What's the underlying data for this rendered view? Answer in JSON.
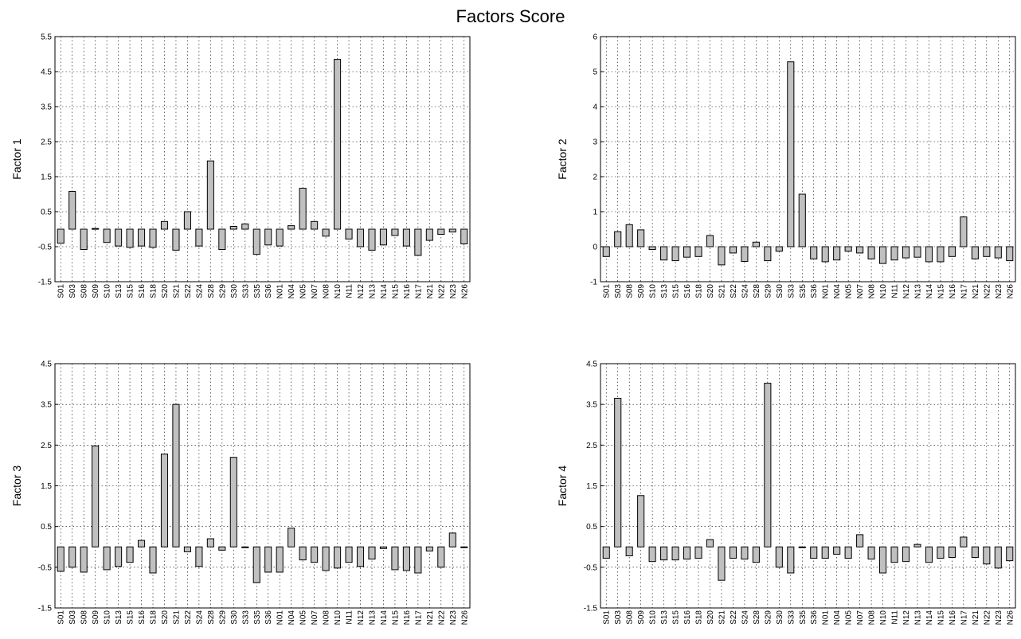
{
  "figure_title": "Factors Score",
  "bar_color": "#c0c0c0",
  "chart_data": [
    {
      "type": "bar",
      "title": "",
      "ylabel": "Factor 1",
      "xlabel": "",
      "ylim": [
        -1.5,
        5.5
      ],
      "yticks": [
        -1.5,
        -0.5,
        0.5,
        1.5,
        2.5,
        3.5,
        4.5,
        5.5
      ],
      "ytick_labels": [
        "-1.5",
        "-0.5",
        "0.5",
        "1.5",
        "2.5",
        "3.5",
        "4.5",
        "5.5"
      ],
      "grid": true,
      "categories": [
        "S01",
        "S03",
        "S08",
        "S09",
        "S10",
        "S13",
        "S15",
        "S16",
        "S18",
        "S20",
        "S21",
        "S22",
        "S24",
        "S28",
        "S29",
        "S30",
        "S33",
        "S35",
        "S36",
        "N01",
        "N04",
        "N05",
        "N07",
        "N08",
        "N10",
        "N11",
        "N12",
        "N13",
        "N14",
        "N15",
        "N16",
        "N17",
        "N21",
        "N22",
        "N23",
        "N26"
      ],
      "values": [
        -0.4,
        1.08,
        -0.58,
        0.02,
        -0.38,
        -0.48,
        -0.52,
        -0.48,
        -0.52,
        0.22,
        -0.6,
        0.5,
        -0.48,
        1.95,
        -0.58,
        0.08,
        0.15,
        -0.72,
        -0.45,
        -0.48,
        0.1,
        1.17,
        0.22,
        -0.2,
        4.85,
        -0.28,
        -0.5,
        -0.6,
        -0.45,
        -0.18,
        -0.48,
        -0.75,
        -0.32,
        -0.15,
        -0.08,
        -0.42
      ]
    },
    {
      "type": "bar",
      "title": "",
      "ylabel": "Factor 2",
      "xlabel": "",
      "ylim": [
        -1,
        6
      ],
      "yticks": [
        -1,
        0,
        1,
        2,
        3,
        4,
        5,
        6
      ],
      "ytick_labels": [
        "-1",
        "0",
        "1",
        "2",
        "3",
        "4",
        "5",
        "6"
      ],
      "grid": true,
      "categories": [
        "S01",
        "S03",
        "S08",
        "S09",
        "S10",
        "S13",
        "S15",
        "S16",
        "S18",
        "S20",
        "S21",
        "S22",
        "S24",
        "S28",
        "S29",
        "S30",
        "S33",
        "S35",
        "S36",
        "N01",
        "N04",
        "N05",
        "N07",
        "N08",
        "N10",
        "N11",
        "N12",
        "N13",
        "N14",
        "N15",
        "N16",
        "N17",
        "N21",
        "N22",
        "N23",
        "N26"
      ],
      "values": [
        -0.28,
        0.43,
        0.63,
        0.48,
        -0.08,
        -0.38,
        -0.4,
        -0.3,
        -0.28,
        0.32,
        -0.52,
        -0.18,
        -0.42,
        0.13,
        -0.4,
        -0.13,
        5.28,
        1.5,
        -0.35,
        -0.43,
        -0.38,
        -0.13,
        -0.18,
        -0.35,
        -0.48,
        -0.38,
        -0.32,
        -0.3,
        -0.43,
        -0.43,
        -0.28,
        0.85,
        -0.35,
        -0.28,
        -0.32,
        -0.4
      ]
    },
    {
      "type": "bar",
      "title": "",
      "ylabel": "Factor 3",
      "xlabel": "",
      "ylim": [
        -1.5,
        4.5
      ],
      "yticks": [
        -1.5,
        -0.5,
        0.5,
        1.5,
        2.5,
        3.5,
        4.5
      ],
      "ytick_labels": [
        "-1.5",
        "-0.5",
        "0.5",
        "1.5",
        "2.5",
        "3.5",
        "4.5"
      ],
      "grid": true,
      "categories": [
        "S01",
        "S03",
        "S08",
        "S09",
        "S10",
        "S13",
        "S15",
        "S16",
        "S18",
        "S20",
        "S21",
        "S22",
        "S24",
        "S28",
        "S29",
        "S30",
        "S33",
        "S35",
        "S36",
        "N01",
        "N04",
        "N05",
        "N07",
        "N08",
        "N10",
        "N11",
        "N12",
        "N13",
        "N14",
        "N15",
        "N16",
        "N17",
        "N21",
        "N22",
        "N23",
        "N26"
      ],
      "values": [
        -0.6,
        -0.5,
        -0.62,
        2.48,
        -0.56,
        -0.48,
        -0.38,
        0.16,
        -0.64,
        2.28,
        3.5,
        -0.12,
        -0.48,
        0.2,
        -0.08,
        2.2,
        0.0,
        -0.88,
        -0.62,
        -0.62,
        0.46,
        -0.32,
        -0.38,
        -0.58,
        -0.52,
        -0.38,
        -0.48,
        -0.3,
        -0.04,
        -0.56,
        -0.58,
        -0.64,
        -0.1,
        -0.5,
        0.34,
        0.0
      ]
    },
    {
      "type": "bar",
      "title": "",
      "ylabel": "Factor 4",
      "xlabel": "",
      "ylim": [
        -1.5,
        4.5
      ],
      "yticks": [
        -1.5,
        -0.5,
        0.5,
        1.5,
        2.5,
        3.5,
        4.5
      ],
      "ytick_labels": [
        "-1.5",
        "-0.5",
        "0.5",
        "1.5",
        "2.5",
        "3.5",
        "4.5"
      ],
      "grid": true,
      "categories": [
        "S01",
        "S03",
        "S08",
        "S09",
        "S10",
        "S13",
        "S15",
        "S16",
        "S18",
        "S20",
        "S21",
        "S22",
        "S24",
        "S28",
        "S29",
        "S30",
        "S33",
        "S35",
        "S36",
        "N01",
        "N04",
        "N05",
        "N07",
        "N08",
        "N10",
        "N11",
        "N12",
        "N13",
        "N14",
        "N15",
        "N16",
        "N17",
        "N21",
        "N22",
        "N23",
        "N26"
      ],
      "values": [
        -0.28,
        3.65,
        -0.22,
        1.26,
        -0.36,
        -0.32,
        -0.32,
        -0.3,
        -0.28,
        0.18,
        -0.82,
        -0.28,
        -0.3,
        -0.38,
        4.02,
        -0.5,
        -0.64,
        0.0,
        -0.28,
        -0.28,
        -0.18,
        -0.28,
        0.3,
        -0.3,
        -0.64,
        -0.38,
        -0.36,
        0.06,
        -0.38,
        -0.28,
        -0.26,
        0.24,
        -0.26,
        -0.42,
        -0.52,
        -0.34
      ]
    }
  ]
}
